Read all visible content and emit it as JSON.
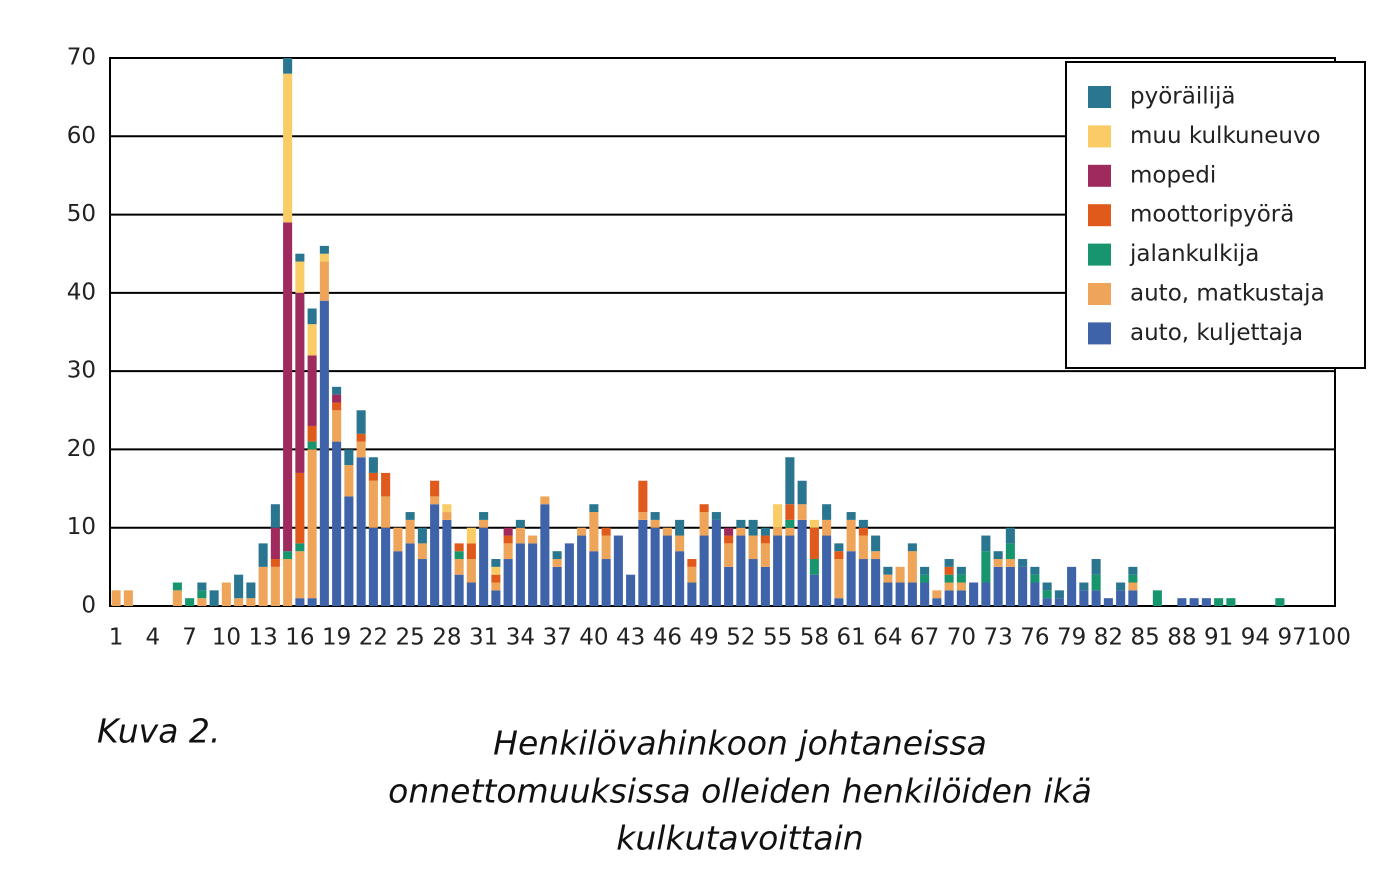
{
  "chart_data": {
    "type": "stacked_bar",
    "figure_label": "Kuva 2.",
    "title": [
      "Henkilövahinkoon johtaneissa",
      "onnettomuuksissa olleiden henkilöiden ikä",
      "kulkutavoittain"
    ],
    "categories": [
      "1",
      null,
      null,
      "4",
      null,
      null,
      "7",
      null,
      null,
      "10",
      null,
      null,
      "13",
      null,
      null,
      "16",
      null,
      null,
      "19",
      null,
      null,
      "22",
      null,
      null,
      "25",
      null,
      null,
      "28",
      null,
      null,
      "31",
      null,
      null,
      "34",
      null,
      null,
      "37",
      null,
      null,
      "40",
      null,
      null,
      "43",
      null,
      null,
      "46",
      null,
      null,
      "49",
      null,
      null,
      "52",
      null,
      null,
      "55",
      null,
      null,
      "58",
      null,
      null,
      "61",
      null,
      null,
      "64",
      null,
      null,
      "67",
      null,
      null,
      "70",
      null,
      null,
      "73",
      null,
      null,
      "76",
      null,
      null,
      "79",
      null,
      null,
      "82",
      null,
      null,
      "85",
      null,
      null,
      "88",
      null,
      null,
      "91",
      null,
      null,
      "94",
      null,
      null,
      "97",
      null,
      null,
      "100"
    ],
    "ylim": [
      0,
      70
    ],
    "yticks": [
      0,
      10,
      20,
      30,
      40,
      50,
      60,
      70
    ],
    "grid": true,
    "legend": "upper right",
    "series": [
      {
        "name": "auto, kuljettaja",
        "color": "#3f63a8",
        "values": [
          0,
          0,
          0,
          0,
          0,
          0,
          0,
          0,
          0,
          0,
          0,
          0,
          0,
          0,
          0,
          1,
          1,
          39,
          21,
          14,
          19,
          10,
          10,
          7,
          8,
          6,
          13,
          11,
          4,
          3,
          10,
          2,
          6,
          8,
          8,
          13,
          5,
          8,
          9,
          7,
          6,
          9,
          4,
          11,
          10,
          9,
          7,
          3,
          9,
          11,
          5,
          9,
          6,
          5,
          9,
          9,
          11,
          4,
          9,
          1,
          7,
          6,
          6,
          3,
          3,
          3,
          3,
          1,
          2,
          2,
          3,
          3,
          5,
          5,
          5,
          3,
          1,
          1,
          5,
          2,
          2,
          1,
          2,
          2,
          0,
          0,
          0,
          1,
          1,
          1,
          0,
          0,
          0,
          0,
          0,
          0,
          0,
          0,
          0,
          0
        ]
      },
      {
        "name": "auto, matkustaja",
        "color": "#eea55a",
        "values": [
          2,
          2,
          0,
          0,
          0,
          2,
          0,
          1,
          0,
          3,
          1,
          1,
          5,
          5,
          6,
          6,
          19,
          5,
          4,
          4,
          2,
          6,
          4,
          3,
          3,
          2,
          1,
          1,
          2,
          3,
          1,
          1,
          2,
          2,
          1,
          1,
          1,
          0,
          1,
          5,
          3,
          0,
          0,
          1,
          1,
          1,
          2,
          2,
          3,
          0,
          3,
          1,
          3,
          3,
          1,
          1,
          2,
          0,
          2,
          5,
          4,
          3,
          1,
          1,
          2,
          4,
          0,
          1,
          1,
          1,
          0,
          0,
          1,
          1,
          0,
          0,
          0,
          0,
          0,
          0,
          0,
          0,
          0,
          1,
          0,
          0,
          0,
          0,
          0,
          0,
          0,
          0,
          0,
          0,
          0,
          0,
          0,
          0,
          0,
          0
        ]
      },
      {
        "name": "jalankulkija",
        "color": "#16956e",
        "values": [
          0,
          0,
          0,
          0,
          0,
          1,
          1,
          1,
          0,
          0,
          0,
          0,
          0,
          0,
          1,
          1,
          1,
          0,
          0,
          0,
          0,
          0,
          0,
          0,
          0,
          0,
          0,
          0,
          1,
          0,
          0,
          0,
          0,
          0,
          0,
          0,
          0,
          0,
          0,
          0,
          0,
          0,
          0,
          0,
          0,
          0,
          0,
          0,
          0,
          0,
          0,
          0,
          0,
          0,
          0,
          1,
          0,
          2,
          0,
          0,
          0,
          0,
          0,
          0,
          0,
          0,
          1,
          0,
          1,
          1,
          0,
          4,
          0,
          2,
          0,
          1,
          1,
          0,
          0,
          0,
          2,
          0,
          0,
          1,
          0,
          2,
          0,
          0,
          0,
          0,
          1,
          1,
          0,
          0,
          0,
          1,
          0,
          0,
          0,
          0
        ]
      },
      {
        "name": "moottoripyörä",
        "color": "#e05a1c",
        "values": [
          0,
          0,
          0,
          0,
          0,
          0,
          0,
          0,
          0,
          0,
          0,
          0,
          0,
          1,
          0,
          9,
          2,
          0,
          1,
          0,
          1,
          1,
          3,
          0,
          0,
          0,
          2,
          0,
          1,
          2,
          0,
          1,
          1,
          0,
          0,
          0,
          0,
          0,
          0,
          0,
          1,
          0,
          0,
          4,
          0,
          0,
          0,
          1,
          1,
          0,
          1,
          0,
          0,
          1,
          0,
          2,
          0,
          4,
          0,
          1,
          0,
          1,
          0,
          0,
          0,
          0,
          0,
          0,
          1,
          0,
          0,
          0,
          0,
          0,
          0,
          0,
          0,
          0,
          0,
          0,
          0,
          0,
          0,
          0,
          0,
          0,
          0,
          0,
          0,
          0,
          0,
          0,
          0,
          0,
          0,
          0,
          0,
          0,
          0,
          0
        ]
      },
      {
        "name": "mopedi",
        "color": "#9e2a5e",
        "values": [
          0,
          0,
          0,
          0,
          0,
          0,
          0,
          0,
          0,
          0,
          0,
          0,
          0,
          4,
          42,
          23,
          9,
          0,
          1,
          0,
          0,
          0,
          0,
          0,
          0,
          0,
          0,
          0,
          0,
          0,
          0,
          0,
          1,
          0,
          0,
          0,
          0,
          0,
          0,
          0,
          0,
          0,
          0,
          0,
          0,
          0,
          0,
          0,
          0,
          0,
          1,
          0,
          0,
          0,
          0,
          0,
          0,
          0,
          0,
          0,
          0,
          0,
          0,
          0,
          0,
          0,
          0,
          0,
          0,
          0,
          0,
          0,
          0,
          0,
          0,
          0,
          0,
          0,
          0,
          0,
          0,
          0,
          0,
          0,
          0,
          0,
          0,
          0,
          0,
          0,
          0,
          0,
          0,
          0,
          0,
          0,
          0,
          0,
          0,
          0
        ]
      },
      {
        "name": "muu kulkuneuvo",
        "color": "#f9cc66",
        "values": [
          0,
          0,
          0,
          0,
          0,
          0,
          0,
          0,
          0,
          0,
          0,
          0,
          0,
          0,
          19,
          4,
          4,
          1,
          0,
          0,
          0,
          0,
          0,
          0,
          0,
          0,
          0,
          1,
          0,
          2,
          0,
          1,
          0,
          0,
          0,
          0,
          0,
          0,
          0,
          0,
          0,
          0,
          0,
          0,
          0,
          0,
          0,
          0,
          0,
          0,
          0,
          0,
          0,
          0,
          3,
          0,
          0,
          1,
          0,
          0,
          0,
          0,
          0,
          0,
          0,
          0,
          0,
          0,
          0,
          0,
          0,
          0,
          0,
          0,
          0,
          0,
          0,
          0,
          0,
          0,
          0,
          0,
          0,
          0,
          0,
          0,
          0,
          0,
          0,
          0,
          0,
          0,
          0,
          0,
          0,
          0,
          0,
          0,
          0,
          0
        ]
      },
      {
        "name": "pyöräilijä",
        "color": "#2a7590",
        "values": [
          0,
          0,
          0,
          0,
          0,
          0,
          0,
          1,
          2,
          0,
          3,
          2,
          3,
          3,
          2,
          1,
          2,
          1,
          1,
          2,
          3,
          2,
          0,
          0,
          1,
          2,
          0,
          0,
          0,
          0,
          1,
          1,
          0,
          1,
          0,
          0,
          1,
          0,
          0,
          1,
          0,
          0,
          0,
          0,
          1,
          0,
          2,
          0,
          0,
          1,
          0,
          1,
          2,
          1,
          0,
          6,
          3,
          0,
          2,
          1,
          1,
          1,
          2,
          1,
          0,
          1,
          1,
          0,
          1,
          1,
          0,
          2,
          1,
          2,
          1,
          1,
          1,
          1,
          0,
          1,
          2,
          0,
          1,
          1,
          0,
          0,
          0,
          0,
          0,
          0,
          0,
          0,
          0,
          0,
          0,
          0,
          0,
          0,
          0,
          0
        ]
      }
    ]
  }
}
